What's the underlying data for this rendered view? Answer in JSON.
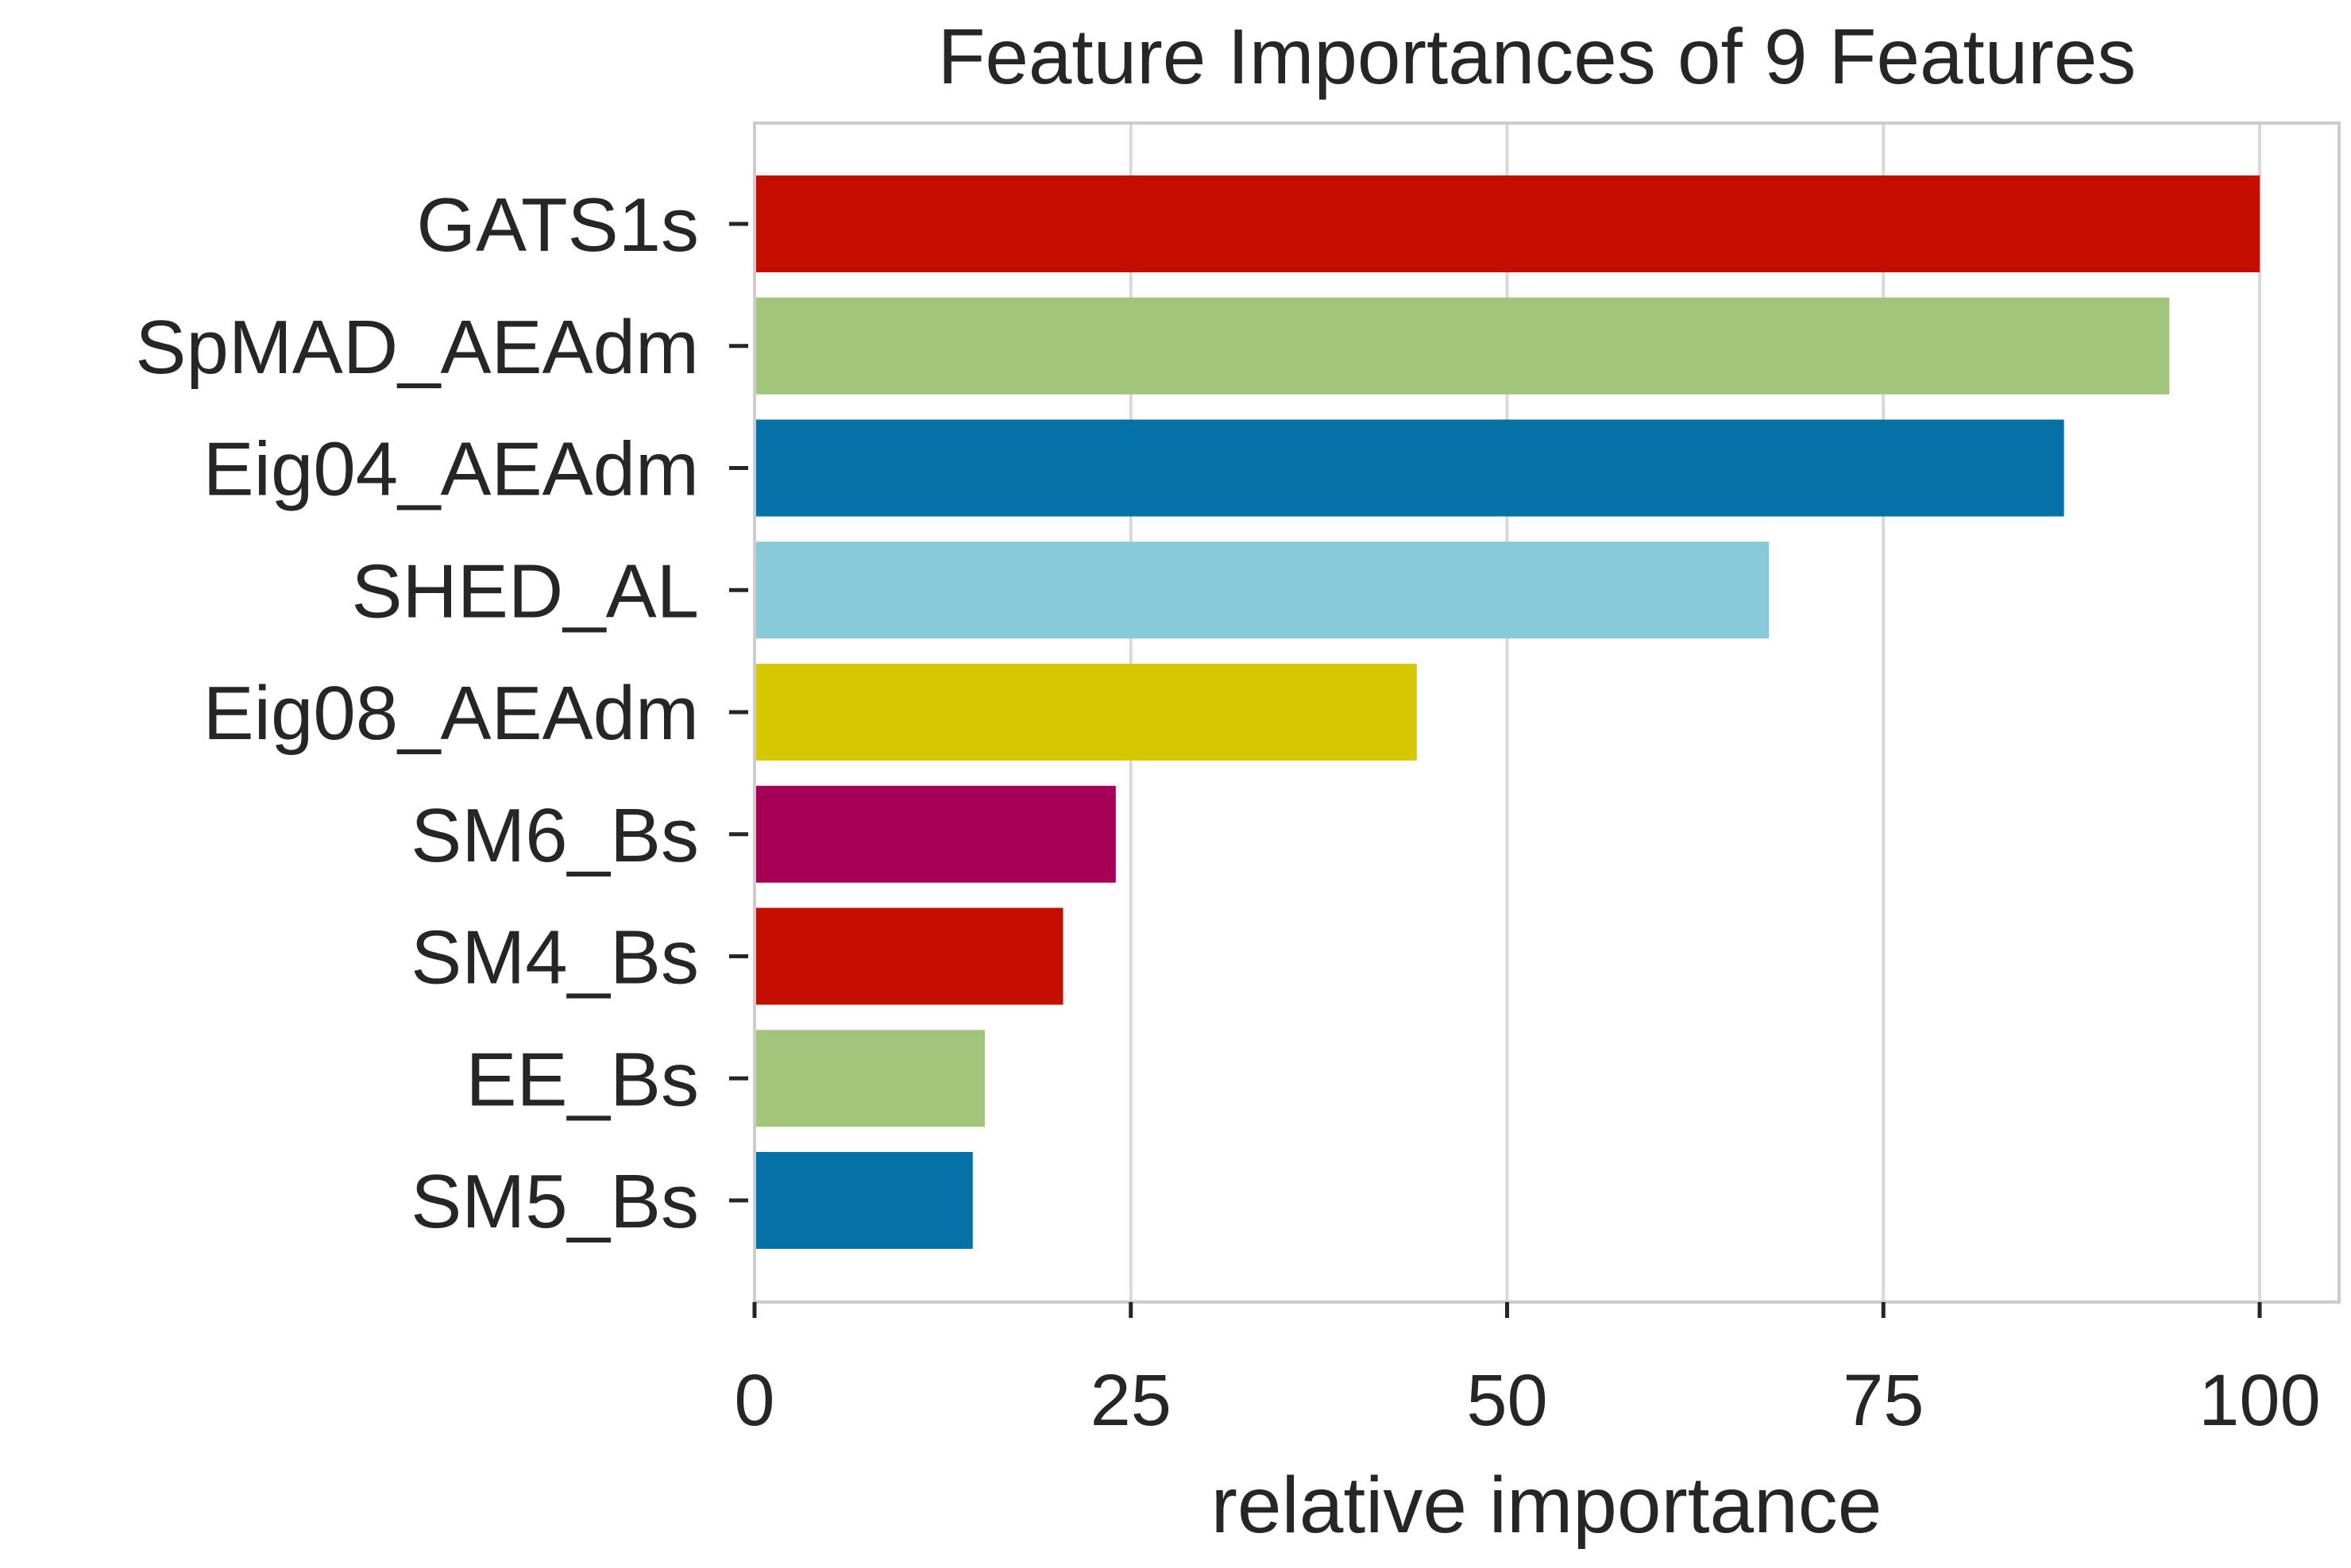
{
  "chart_data": {
    "type": "bar",
    "orientation": "horizontal",
    "title": "Feature Importances of 9 Features",
    "xlabel": "relative importance",
    "ylabel": "",
    "xlim": [
      0,
      105
    ],
    "xticks": [
      0,
      25,
      50,
      75,
      100
    ],
    "xtick_labels": [
      "0",
      "25",
      "50",
      "75",
      "100"
    ],
    "grid": true,
    "categories": [
      "GATS1s",
      "SpMAD_AEAdm",
      "Eig04_AEAdm",
      "SHED_AL",
      "Eig08_AEAdm",
      "SM6_Bs",
      "SM4_Bs",
      "EE_Bs",
      "SM5_Bs"
    ],
    "values": [
      100,
      94,
      87,
      67.4,
      44,
      24,
      20.5,
      15.3,
      14.5
    ],
    "colors": [
      "#c40e00",
      "#a0c57b",
      "#0472a6",
      "#89cad9",
      "#d6c700",
      "#a60056",
      "#c40e00",
      "#a0c57b",
      "#0472a6"
    ]
  }
}
